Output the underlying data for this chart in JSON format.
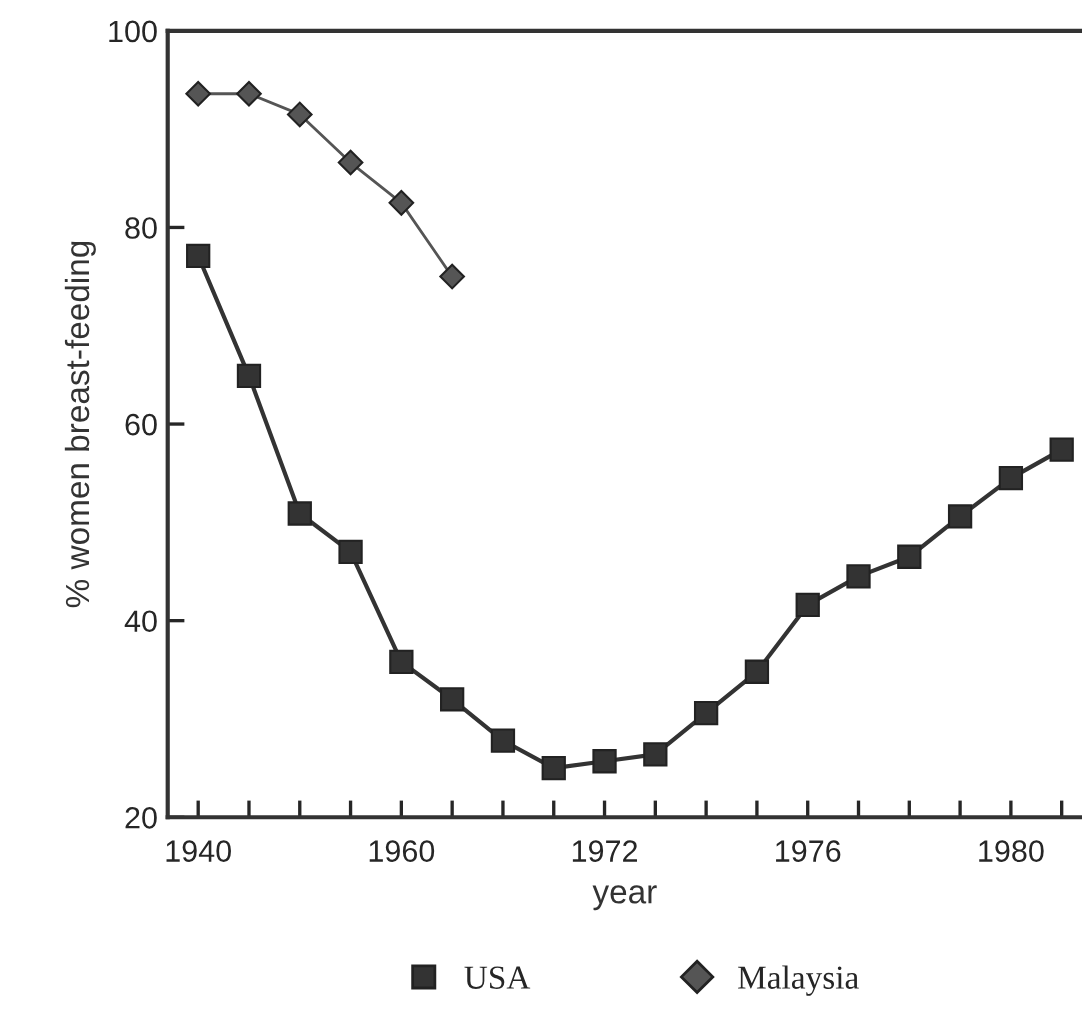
{
  "chart_data": {
    "type": "line",
    "xlabel": "year",
    "ylabel": "% women breast-feeding",
    "categories": [
      "1940",
      null,
      null,
      null,
      "1960",
      null,
      null,
      null,
      "1972",
      null,
      null,
      null,
      "1976",
      null,
      null,
      null,
      "1980",
      null
    ],
    "ylim": [
      20,
      100
    ],
    "yticks": [
      20,
      40,
      60,
      80,
      100
    ],
    "grid": false,
    "legend": "bottom",
    "series": [
      {
        "name": "USA",
        "color": "#333333",
        "marker": "square",
        "values": [
          77.1,
          64.9,
          50.9,
          47.0,
          35.8,
          32.0,
          27.8,
          25.0,
          25.7,
          26.4,
          30.6,
          34.8,
          41.6,
          44.5,
          46.5,
          50.6,
          54.5,
          57.4
        ]
      },
      {
        "name": "Malaysia",
        "color": "#555555",
        "marker": "diamond",
        "values": [
          93.6,
          93.6,
          91.5,
          86.6,
          82.5,
          75.0,
          null,
          null,
          null,
          null,
          null,
          null,
          null,
          null,
          null,
          null,
          null,
          null
        ]
      }
    ]
  }
}
